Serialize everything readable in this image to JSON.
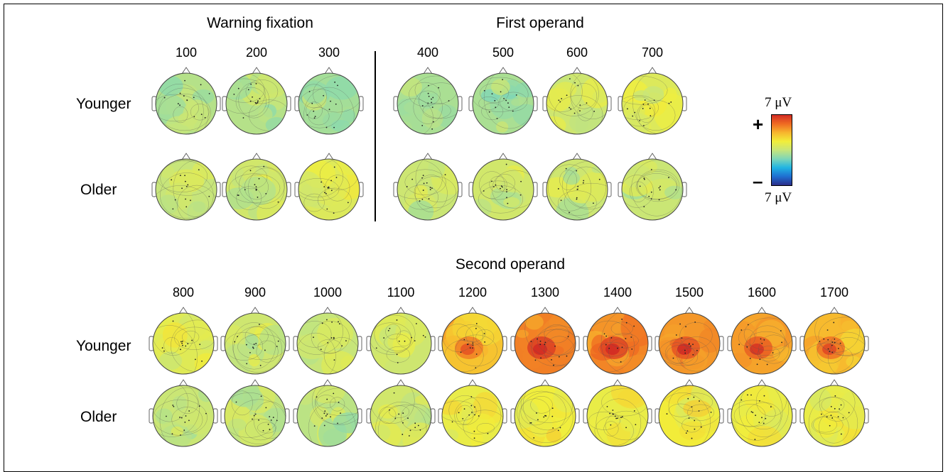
{
  "sections": {
    "warning": {
      "title": "Warning fixation",
      "times": [
        "100",
        "200",
        "300"
      ]
    },
    "first": {
      "title": "First operand",
      "times": [
        "400",
        "500",
        "600",
        "700"
      ]
    },
    "second": {
      "title": "Second operand",
      "times": [
        "800",
        "900",
        "1000",
        "1100",
        "1200",
        "1300",
        "1400",
        "1500",
        "1600",
        "1700"
      ]
    }
  },
  "groups": {
    "younger": "Younger",
    "older": "Older"
  },
  "colorbar": {
    "top_label": "7 μV",
    "bottom_label": "7 μV",
    "plus_symbol": "+",
    "minus_symbol": "–",
    "stops": [
      "#2b2e8a",
      "#1f6fd1",
      "#20b4e3",
      "#7ed6b8",
      "#c7e57a",
      "#f2ee3a",
      "#f7b52d",
      "#ef6a22",
      "#d32c24"
    ]
  },
  "maps": {
    "top_younger": [
      0.47,
      0.47,
      0.44,
      0.45,
      0.45,
      0.52,
      0.56
    ],
    "top_older": [
      0.5,
      0.53,
      0.56,
      0.51,
      0.53,
      0.52,
      0.51
    ],
    "bottom_younger": [
      0.57,
      0.52,
      0.5,
      0.52,
      0.72,
      0.84,
      0.83,
      0.8,
      0.78,
      0.74
    ],
    "bottom_older": [
      0.51,
      0.49,
      0.48,
      0.53,
      0.6,
      0.62,
      0.6,
      0.63,
      0.6,
      0.6
    ]
  }
}
